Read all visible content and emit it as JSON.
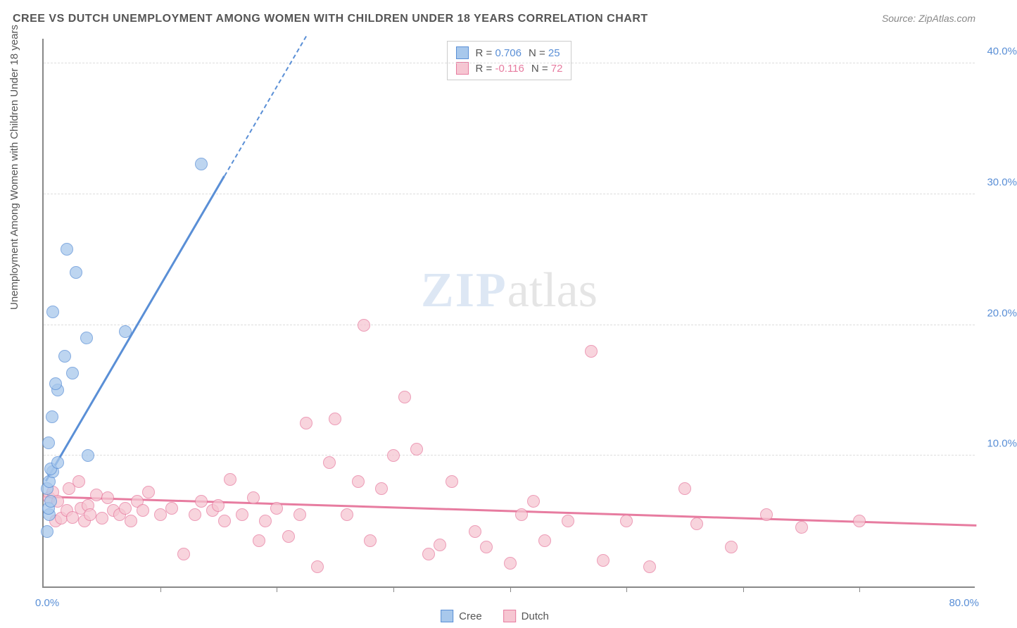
{
  "title": "CREE VS DUTCH UNEMPLOYMENT AMONG WOMEN WITH CHILDREN UNDER 18 YEARS CORRELATION CHART",
  "source": "Source: ZipAtlas.com",
  "ylabel": "Unemployment Among Women with Children Under 18 years",
  "watermark": {
    "left": "ZIP",
    "right": "atlas"
  },
  "chart": {
    "type": "scatter",
    "background_color": "#ffffff",
    "grid_color": "#dddddd",
    "axis_color": "#888888",
    "xlim": [
      0,
      80
    ],
    "ylim": [
      0,
      42
    ],
    "x_ticks_minor": [
      10,
      20,
      30,
      40,
      50,
      60,
      70
    ],
    "x_labels": {
      "min": "0.0%",
      "max": "80.0%"
    },
    "y_gridlines": [
      {
        "value": 10,
        "label": "10.0%"
      },
      {
        "value": 20,
        "label": "20.0%"
      },
      {
        "value": 30,
        "label": "30.0%"
      },
      {
        "value": 40,
        "label": "40.0%"
      }
    ],
    "tick_label_color": "#5a8fd6",
    "point_radius": 9,
    "point_border_width": 1.5,
    "point_fill_opacity": 0.25,
    "series": [
      {
        "name": "Cree",
        "fill_color": "#a8c8ec",
        "stroke_color": "#5a8fd6",
        "stats": {
          "r": "0.706",
          "n": "25"
        },
        "trend": {
          "x1": 0.2,
          "y1": 8.0,
          "x2": 22.5,
          "y2": 42.0,
          "dashed_from_x": 15.5
        },
        "points": [
          [
            0.3,
            4.2
          ],
          [
            0.5,
            5.5
          ],
          [
            0.4,
            6.0
          ],
          [
            0.6,
            6.5
          ],
          [
            0.3,
            7.5
          ],
          [
            0.5,
            8.0
          ],
          [
            0.8,
            8.8
          ],
          [
            0.6,
            9.0
          ],
          [
            1.2,
            9.5
          ],
          [
            3.8,
            10.0
          ],
          [
            0.4,
            11.0
          ],
          [
            0.7,
            13.0
          ],
          [
            1.2,
            15.0
          ],
          [
            1.0,
            15.5
          ],
          [
            2.5,
            16.3
          ],
          [
            1.8,
            17.6
          ],
          [
            3.7,
            19.0
          ],
          [
            7.0,
            19.5
          ],
          [
            0.8,
            21.0
          ],
          [
            2.8,
            24.0
          ],
          [
            2.0,
            25.8
          ],
          [
            13.5,
            32.3
          ]
        ]
      },
      {
        "name": "Dutch",
        "fill_color": "#f6c6d2",
        "stroke_color": "#e77ca0",
        "stats": {
          "r": "-0.116",
          "n": "72"
        },
        "trend": {
          "x1": 0,
          "y1": 6.8,
          "x2": 80,
          "y2": 4.6
        },
        "points": [
          [
            0.5,
            6.8
          ],
          [
            0.8,
            7.2
          ],
          [
            1.0,
            5.0
          ],
          [
            1.2,
            6.5
          ],
          [
            1.5,
            5.2
          ],
          [
            2.0,
            5.8
          ],
          [
            2.2,
            7.5
          ],
          [
            2.5,
            5.3
          ],
          [
            3.0,
            8.0
          ],
          [
            3.2,
            6.0
          ],
          [
            3.5,
            5.0
          ],
          [
            3.8,
            6.2
          ],
          [
            4.0,
            5.5
          ],
          [
            4.5,
            7.0
          ],
          [
            5.0,
            5.2
          ],
          [
            5.5,
            6.8
          ],
          [
            6.0,
            5.8
          ],
          [
            6.5,
            5.5
          ],
          [
            7.0,
            6.0
          ],
          [
            7.5,
            5.0
          ],
          [
            8.0,
            6.5
          ],
          [
            8.5,
            5.8
          ],
          [
            9.0,
            7.2
          ],
          [
            10.0,
            5.5
          ],
          [
            11.0,
            6.0
          ],
          [
            12.0,
            2.5
          ],
          [
            13.0,
            5.5
          ],
          [
            13.5,
            6.5
          ],
          [
            14.5,
            5.8
          ],
          [
            15.0,
            6.2
          ],
          [
            15.5,
            5.0
          ],
          [
            16.0,
            8.2
          ],
          [
            17.0,
            5.5
          ],
          [
            18.0,
            6.8
          ],
          [
            18.5,
            3.5
          ],
          [
            19.0,
            5.0
          ],
          [
            20.0,
            6.0
          ],
          [
            21.0,
            3.8
          ],
          [
            22.0,
            5.5
          ],
          [
            22.5,
            12.5
          ],
          [
            23.5,
            1.5
          ],
          [
            24.5,
            9.5
          ],
          [
            25.0,
            12.8
          ],
          [
            26.0,
            5.5
          ],
          [
            27.0,
            8.0
          ],
          [
            27.5,
            20.0
          ],
          [
            28.0,
            3.5
          ],
          [
            29.0,
            7.5
          ],
          [
            30.0,
            10.0
          ],
          [
            31.0,
            14.5
          ],
          [
            32.0,
            10.5
          ],
          [
            33.0,
            2.5
          ],
          [
            34.0,
            3.2
          ],
          [
            35.0,
            8.0
          ],
          [
            37.0,
            4.2
          ],
          [
            38.0,
            3.0
          ],
          [
            40.0,
            1.8
          ],
          [
            41.0,
            5.5
          ],
          [
            42.0,
            6.5
          ],
          [
            43.0,
            3.5
          ],
          [
            45.0,
            5.0
          ],
          [
            47.0,
            18.0
          ],
          [
            48.0,
            2.0
          ],
          [
            50.0,
            5.0
          ],
          [
            52.0,
            1.5
          ],
          [
            55.0,
            7.5
          ],
          [
            56.0,
            4.8
          ],
          [
            59.0,
            3.0
          ],
          [
            62.0,
            5.5
          ],
          [
            65.0,
            4.5
          ],
          [
            70.0,
            5.0
          ]
        ]
      }
    ]
  },
  "legend": {
    "items": [
      {
        "label": "Cree",
        "fill": "#a8c8ec",
        "stroke": "#5a8fd6"
      },
      {
        "label": "Dutch",
        "fill": "#f6c6d2",
        "stroke": "#e77ca0"
      }
    ]
  }
}
